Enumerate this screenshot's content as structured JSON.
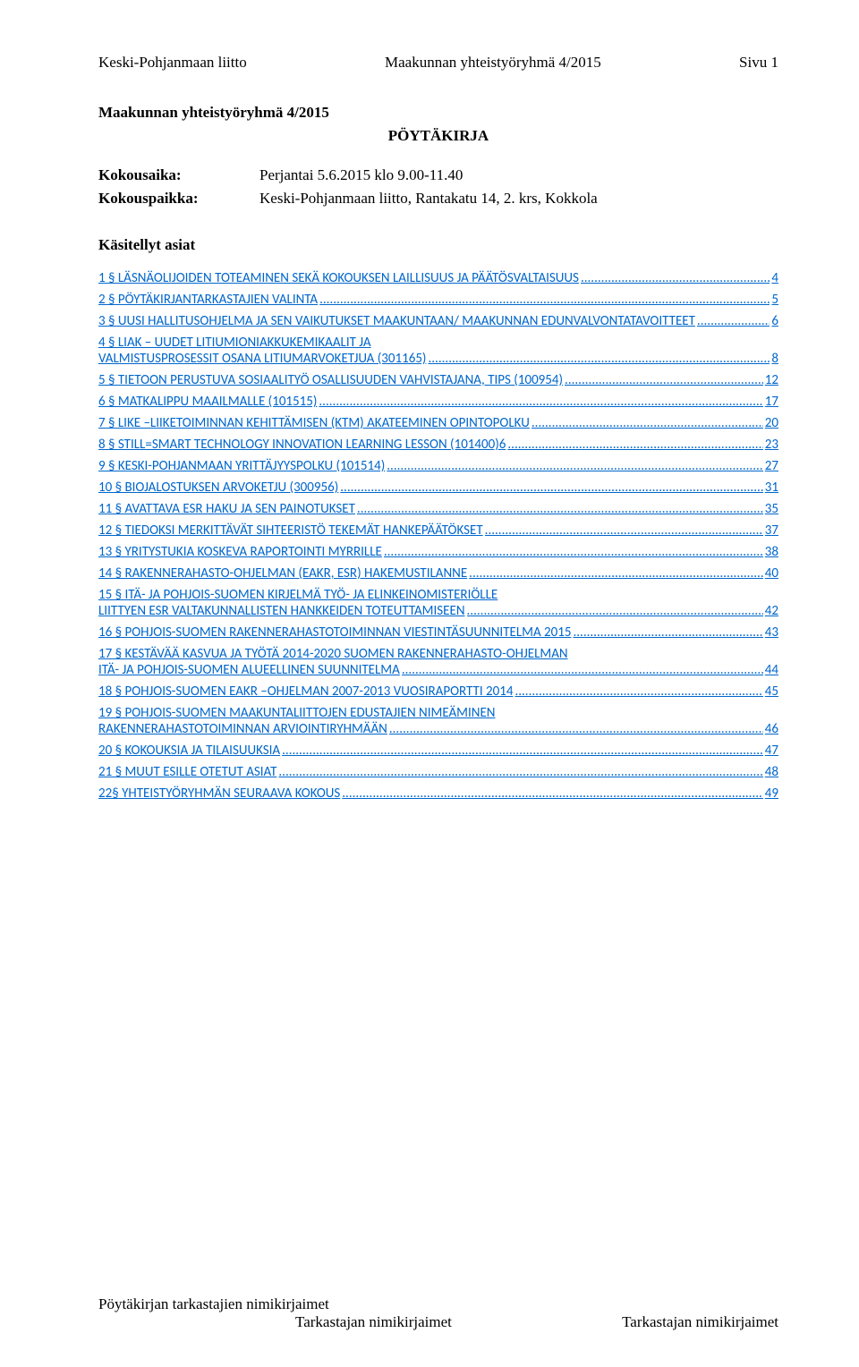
{
  "header": {
    "left": "Keski-Pohjanmaan liitto",
    "center": "Maakunnan yhteistyöryhmä 4/2015",
    "right": "Sivu 1"
  },
  "title": "Maakunnan yhteistyöryhmä 4/2015",
  "subtitle": "PÖYTÄKIRJA",
  "meta": {
    "time_label": "Kokousaika:",
    "time_value": "Perjantai 5.6.2015 klo 9.00-11.40",
    "place_label": "Kokouspaikka:",
    "place_value": "Keski-Pohjanmaan liitto, Rantakatu 14, 2. krs, Kokkola"
  },
  "toc_heading": "Käsitellyt asiat",
  "link_color": "#0066cc",
  "toc": [
    {
      "text": "1 § LÄSNÄOLIJOIDEN TOTEAMINEN SEKÄ KOKOUKSEN LAILLISUUS JA PÄÄTÖSVALTAISUUS",
      "page": "4"
    },
    {
      "text": "2 § PÖYTÄKIRJANTARKASTAJIEN VALINTA",
      "page": "5"
    },
    {
      "text": "3 § UUSI HALLITUSOHJELMA JA SEN VAIKUTUKSET MAAKUNTAAN/ MAAKUNNAN EDUNVALVONTATAVOITTEET",
      "page": "6"
    },
    {
      "text": "4 § LIAK – UUDET LITIUMIONIAKKUKEMIKAALIT JA VALMISTUSPROSESSIT OSANA LITIUMARVOKETJUA (301165)",
      "page": "8"
    },
    {
      "text": "5 § TIETOON PERUSTUVA SOSIAALITYÖ OSALLISUUDEN VAHVISTAJANA, TIPS (100954)",
      "page": "12"
    },
    {
      "text": "6 § MATKALIPPU MAAILMALLE (101515)",
      "page": "17"
    },
    {
      "text": "7 § LIKE –LIIKETOIMINNAN KEHITTÄMISEN (KTM) AKATEEMINEN OPINTOPOLKU",
      "page": "20"
    },
    {
      "text": "8 § STILL=SMART TECHNOLOGY INNOVATION LEARNING LESSON (101400)6",
      "page": "23"
    },
    {
      "text": "9 § KESKI-POHJANMAAN YRITTÄJYYSPOLKU (101514)",
      "page": "27"
    },
    {
      "text": "10 § BIOJALOSTUKSEN ARVOKETJU (300956)",
      "page": "31"
    },
    {
      "text": "11 § AVATTAVA ESR HAKU JA SEN PAINOTUKSET",
      "page": "35"
    },
    {
      "text": "12 § TIEDOKSI MERKITTÄVÄT SIHTEERISTÖ TEKEMÄT HANKEPÄÄTÖKSET",
      "page": "37"
    },
    {
      "text": "13 § YRITYSTUKIA KOSKEVA RAPORTOINTI MYRRILLE",
      "page": "38"
    },
    {
      "text": "14 § RAKENNERAHASTO-OHJELMAN (EAKR, ESR) HAKEMUSTILANNE",
      "page": "40"
    },
    {
      "text": "15 § ITÄ- JA POHJOIS-SUOMEN KIRJELMÄ TYÖ- JA ELINKEINOMISTERIÖLLE LIITTYEN ESR VALTAKUNNALLISTEN HANKKEIDEN TOTEUTTAMISEEN",
      "page": "42"
    },
    {
      "text": "16 § POHJOIS-SUOMEN RAKENNERAHASTOTOIMINNAN VIESTINTÄSUUNNITELMA 2015",
      "page": "43"
    },
    {
      "text": "17 § KESTÄVÄÄ KASVUA JA TYÖTÄ 2014-2020 SUOMEN RAKENNERAHASTO-OHJELMAN ITÄ- JA POHJOIS-SUOMEN ALUEELLINEN SUUNNITELMA",
      "page": "44"
    },
    {
      "text": "18 § POHJOIS-SUOMEN EAKR –OHJELMAN 2007-2013 VUOSIRAPORTTI 2014",
      "page": "45"
    },
    {
      "text": "19 § POHJOIS-SUOMEN MAAKUNTALIITTOJEN EDUSTAJIEN NIMEÄMINEN RAKENNERAHASTOTOIMINNAN ARVIOINTIRYHMÄÄN",
      "page": "46"
    },
    {
      "text": "20 § KOKOUKSIA JA TILAISUUKSIA",
      "page": "47"
    },
    {
      "text": "21 § MUUT ESILLE OTETUT ASIAT",
      "page": "48"
    },
    {
      "text": "22§ YHTEISTYÖRYHMÄN SEURAAVA KOKOUS",
      "page": "49"
    }
  ],
  "footer": {
    "line1": "Pöytäkirjan tarkastajien nimikirjaimet",
    "line2a": "Tarkastajan nimikirjaimet",
    "line2b": "Tarkastajan nimikirjaimet"
  }
}
